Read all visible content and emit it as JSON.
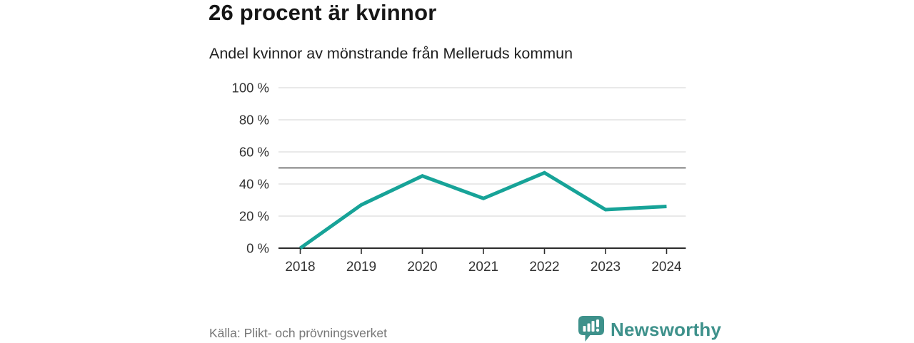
{
  "header": {
    "title": "26 procent är kvinnor",
    "subtitle": "Andel kvinnor av mönstrande från Melleruds kommun"
  },
  "footer": {
    "source": "Källa: Plikt- och prövningsverket",
    "logo_text": "Newsworthy"
  },
  "colors": {
    "line": "#17a398",
    "grid": "#dcdcdc",
    "reference": "#4d4d4d",
    "axis": "#2b2b2b",
    "tick_label": "#333333",
    "logo": "#3e918b"
  },
  "chart_data": {
    "type": "line",
    "title": "26 procent är kvinnor",
    "subtitle": "Andel kvinnor av mönstrande från Melleruds kommun",
    "x": [
      2018,
      2019,
      2020,
      2021,
      2022,
      2023,
      2024
    ],
    "values": [
      0,
      27,
      45,
      31,
      47,
      24,
      26
    ],
    "series_name": "Andel kvinnor av mönstrande",
    "ylim": [
      0,
      100
    ],
    "yticks": [
      0,
      20,
      40,
      60,
      80,
      100
    ],
    "ytick_suffix": " %",
    "reference_line": 50,
    "grid": true,
    "legend": false,
    "source": "Källa: Plikt- och prövningsverket"
  }
}
